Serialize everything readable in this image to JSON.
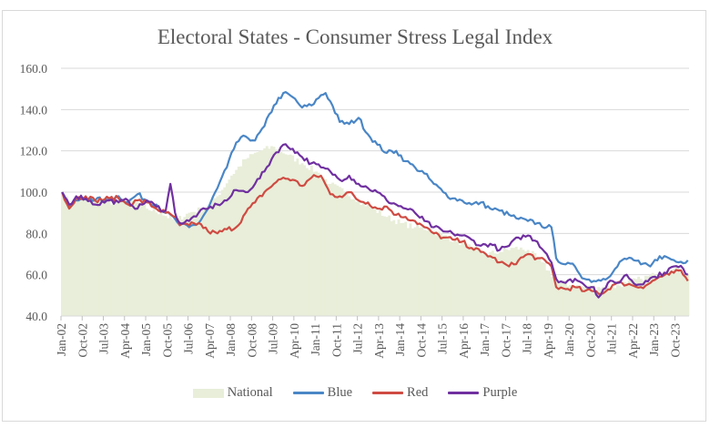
{
  "chart_data": {
    "type": "line",
    "title": "Electoral States - Consumer Stress Legal Index",
    "xlabel": "",
    "ylabel": "",
    "ylim": [
      40,
      160
    ],
    "yticks": [
      "40.0",
      "60.0",
      "80.0",
      "100.0",
      "120.0",
      "140.0",
      "160.0"
    ],
    "ytick_values": [
      40,
      60,
      80,
      100,
      120,
      140,
      160
    ],
    "grid": true,
    "legend_position": "bottom",
    "x_start": "Jan-02",
    "x_end": "Mar-24",
    "n_months": 267,
    "xticks": [
      "Jan-02",
      "Oct-02",
      "Jul-03",
      "Apr-04",
      "Jan-05",
      "Oct-05",
      "Jul-06",
      "Apr-07",
      "Jan-08",
      "Oct-08",
      "Jul-09",
      "Apr-10",
      "Jan-11",
      "Oct-11",
      "Jul-12",
      "Apr-13",
      "Jan-14",
      "Oct-14",
      "Jul-15",
      "Apr-16",
      "Jan-17",
      "Oct-17",
      "Jul-18",
      "Apr-19",
      "Jan-20",
      "Oct-20",
      "Jul-21",
      "Apr-22",
      "Jan-23",
      "Oct-23"
    ],
    "xtick_step_months": 9,
    "series": [
      {
        "name": "National",
        "kind": "area",
        "color": "#e8eed9",
        "anchors": [
          [
            0,
            100
          ],
          [
            3,
            95
          ],
          [
            8,
            97
          ],
          [
            15,
            96
          ],
          [
            24,
            95
          ],
          [
            30,
            96
          ],
          [
            36,
            92
          ],
          [
            42,
            90
          ],
          [
            48,
            86
          ],
          [
            54,
            90
          ],
          [
            60,
            92
          ],
          [
            66,
            98
          ],
          [
            72,
            108
          ],
          [
            78,
            116
          ],
          [
            84,
            120
          ],
          [
            90,
            122
          ],
          [
            96,
            118
          ],
          [
            102,
            114
          ],
          [
            108,
            110
          ],
          [
            114,
            104
          ],
          [
            120,
            100
          ],
          [
            126,
            96
          ],
          [
            132,
            92
          ],
          [
            138,
            88
          ],
          [
            144,
            85
          ],
          [
            150,
            83
          ],
          [
            156,
            82
          ],
          [
            162,
            79
          ],
          [
            168,
            76
          ],
          [
            174,
            73
          ],
          [
            180,
            70
          ],
          [
            186,
            71
          ],
          [
            192,
            73
          ],
          [
            198,
            72
          ],
          [
            204,
            66
          ],
          [
            210,
            57
          ],
          [
            216,
            55
          ],
          [
            222,
            54
          ],
          [
            228,
            54
          ],
          [
            234,
            54
          ],
          [
            240,
            56
          ],
          [
            246,
            58
          ],
          [
            252,
            60
          ],
          [
            258,
            62
          ],
          [
            262,
            63
          ],
          [
            266,
            60
          ]
        ]
      },
      {
        "name": "Blue",
        "kind": "line",
        "color": "#4a86c6",
        "anchors": [
          [
            0,
            100
          ],
          [
            3,
            93
          ],
          [
            6,
            96
          ],
          [
            12,
            97
          ],
          [
            18,
            96
          ],
          [
            24,
            98
          ],
          [
            28,
            95
          ],
          [
            32,
            99
          ],
          [
            36,
            96
          ],
          [
            40,
            94
          ],
          [
            44,
            90
          ],
          [
            48,
            87
          ],
          [
            50,
            84
          ],
          [
            54,
            83
          ],
          [
            58,
            85
          ],
          [
            62,
            92
          ],
          [
            66,
            102
          ],
          [
            70,
            112
          ],
          [
            74,
            124
          ],
          [
            78,
            127
          ],
          [
            82,
            125
          ],
          [
            86,
            132
          ],
          [
            90,
            142
          ],
          [
            94,
            148
          ],
          [
            98,
            146
          ],
          [
            102,
            141
          ],
          [
            106,
            142
          ],
          [
            110,
            147
          ],
          [
            112,
            148
          ],
          [
            114,
            144
          ],
          [
            118,
            134
          ],
          [
            122,
            133
          ],
          [
            126,
            136
          ],
          [
            130,
            128
          ],
          [
            134,
            123
          ],
          [
            138,
            119
          ],
          [
            142,
            120
          ],
          [
            146,
            115
          ],
          [
            150,
            112
          ],
          [
            154,
            109
          ],
          [
            158,
            104
          ],
          [
            162,
            100
          ],
          [
            166,
            97
          ],
          [
            170,
            96
          ],
          [
            174,
            94
          ],
          [
            178,
            95
          ],
          [
            182,
            92
          ],
          [
            186,
            91
          ],
          [
            190,
            89
          ],
          [
            194,
            87
          ],
          [
            198,
            86
          ],
          [
            202,
            85
          ],
          [
            206,
            83
          ],
          [
            208,
            83
          ],
          [
            210,
            68
          ],
          [
            214,
            65
          ],
          [
            218,
            64
          ],
          [
            222,
            58
          ],
          [
            226,
            57
          ],
          [
            230,
            58
          ],
          [
            234,
            61
          ],
          [
            238,
            67
          ],
          [
            242,
            68
          ],
          [
            246,
            65
          ],
          [
            250,
            64
          ],
          [
            254,
            69
          ],
          [
            258,
            68
          ],
          [
            262,
            66
          ],
          [
            266,
            67
          ]
        ]
      },
      {
        "name": "Red",
        "kind": "line",
        "color": "#cf4b43",
        "anchors": [
          [
            0,
            100
          ],
          [
            3,
            92
          ],
          [
            6,
            97
          ],
          [
            10,
            98
          ],
          [
            14,
            96
          ],
          [
            20,
            97
          ],
          [
            24,
            97
          ],
          [
            28,
            94
          ],
          [
            32,
            96
          ],
          [
            36,
            95
          ],
          [
            40,
            92
          ],
          [
            44,
            90
          ],
          [
            48,
            88
          ],
          [
            50,
            84
          ],
          [
            54,
            84
          ],
          [
            58,
            85
          ],
          [
            62,
            81
          ],
          [
            66,
            80
          ],
          [
            70,
            82
          ],
          [
            74,
            83
          ],
          [
            78,
            90
          ],
          [
            82,
            95
          ],
          [
            86,
            100
          ],
          [
            90,
            104
          ],
          [
            94,
            107
          ],
          [
            98,
            106
          ],
          [
            102,
            103
          ],
          [
            106,
            107
          ],
          [
            110,
            108
          ],
          [
            114,
            99
          ],
          [
            118,
            98
          ],
          [
            122,
            100
          ],
          [
            126,
            96
          ],
          [
            130,
            95
          ],
          [
            134,
            92
          ],
          [
            138,
            93
          ],
          [
            142,
            89
          ],
          [
            146,
            88
          ],
          [
            150,
            86
          ],
          [
            154,
            83
          ],
          [
            158,
            80
          ],
          [
            162,
            78
          ],
          [
            166,
            77
          ],
          [
            170,
            76
          ],
          [
            174,
            73
          ],
          [
            178,
            71
          ],
          [
            182,
            69
          ],
          [
            186,
            66
          ],
          [
            190,
            64
          ],
          [
            194,
            67
          ],
          [
            198,
            70
          ],
          [
            202,
            68
          ],
          [
            206,
            66
          ],
          [
            208,
            64
          ],
          [
            210,
            54
          ],
          [
            214,
            53
          ],
          [
            218,
            54
          ],
          [
            222,
            52
          ],
          [
            226,
            52
          ],
          [
            230,
            51
          ],
          [
            234,
            55
          ],
          [
            238,
            56
          ],
          [
            242,
            55
          ],
          [
            246,
            54
          ],
          [
            250,
            56
          ],
          [
            254,
            59
          ],
          [
            258,
            60
          ],
          [
            262,
            62
          ],
          [
            264,
            60
          ],
          [
            266,
            57
          ]
        ]
      },
      {
        "name": "Purple",
        "kind": "line",
        "color": "#7030a0",
        "anchors": [
          [
            0,
            100
          ],
          [
            3,
            94
          ],
          [
            6,
            98
          ],
          [
            10,
            97
          ],
          [
            14,
            94
          ],
          [
            20,
            96
          ],
          [
            24,
            95
          ],
          [
            28,
            96
          ],
          [
            32,
            92
          ],
          [
            36,
            96
          ],
          [
            40,
            93
          ],
          [
            44,
            91
          ],
          [
            46,
            104
          ],
          [
            48,
            90
          ],
          [
            50,
            85
          ],
          [
            54,
            86
          ],
          [
            58,
            90
          ],
          [
            62,
            92
          ],
          [
            66,
            94
          ],
          [
            70,
            96
          ],
          [
            74,
            101
          ],
          [
            78,
            100
          ],
          [
            82,
            104
          ],
          [
            86,
            110
          ],
          [
            90,
            118
          ],
          [
            94,
            123
          ],
          [
            98,
            121
          ],
          [
            102,
            117
          ],
          [
            106,
            114
          ],
          [
            110,
            112
          ],
          [
            114,
            110
          ],
          [
            118,
            106
          ],
          [
            122,
            108
          ],
          [
            126,
            104
          ],
          [
            130,
            102
          ],
          [
            134,
            100
          ],
          [
            138,
            96
          ],
          [
            142,
            94
          ],
          [
            146,
            92
          ],
          [
            150,
            90
          ],
          [
            154,
            86
          ],
          [
            158,
            83
          ],
          [
            162,
            81
          ],
          [
            166,
            80
          ],
          [
            170,
            79
          ],
          [
            174,
            77
          ],
          [
            178,
            74
          ],
          [
            182,
            75
          ],
          [
            186,
            72
          ],
          [
            190,
            74
          ],
          [
            194,
            78
          ],
          [
            198,
            79
          ],
          [
            202,
            76
          ],
          [
            206,
            70
          ],
          [
            208,
            66
          ],
          [
            210,
            58
          ],
          [
            214,
            56
          ],
          [
            218,
            58
          ],
          [
            222,
            55
          ],
          [
            226,
            54
          ],
          [
            228,
            49
          ],
          [
            232,
            56
          ],
          [
            236,
            56
          ],
          [
            240,
            60
          ],
          [
            244,
            55
          ],
          [
            248,
            57
          ],
          [
            252,
            59
          ],
          [
            256,
            61
          ],
          [
            260,
            64
          ],
          [
            264,
            63
          ],
          [
            266,
            60
          ]
        ]
      }
    ]
  }
}
